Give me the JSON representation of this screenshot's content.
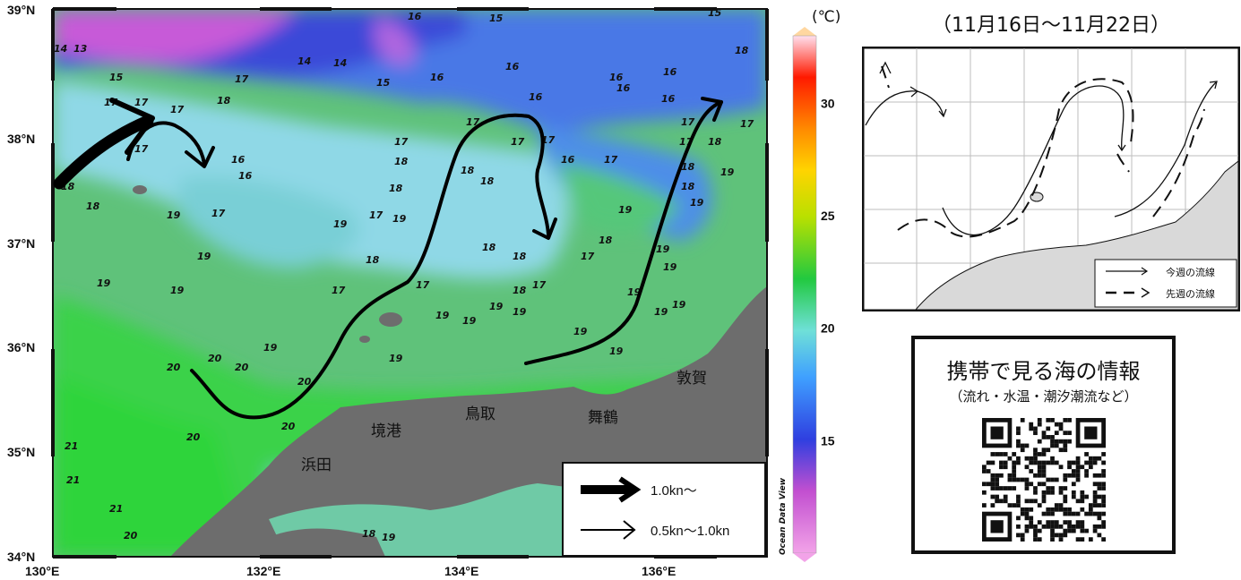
{
  "main_map": {
    "lat_labels": [
      "39°N",
      "38°N",
      "37°N",
      "36°N",
      "35°N",
      "34°N"
    ],
    "lon_labels": [
      "130°E",
      "132°E",
      "134°E",
      "136°E"
    ],
    "place_labels": [
      "浜田",
      "境港",
      "鳥取",
      "舞鶴",
      "敦賀"
    ],
    "contour_labels": [
      "14",
      "13",
      "16",
      "15",
      "15",
      "14",
      "14",
      "15",
      "16",
      "16",
      "16",
      "15",
      "18",
      "17",
      "17",
      "17",
      "17",
      "18",
      "16",
      "17",
      "16",
      "16",
      "16",
      "17",
      "18",
      "17",
      "17",
      "17",
      "17",
      "18",
      "18",
      "17",
      "16",
      "16",
      "17",
      "18",
      "16",
      "17",
      "18",
      "18",
      "19",
      "17",
      "18",
      "19",
      "19",
      "19",
      "18",
      "17",
      "18",
      "17",
      "18",
      "19",
      "19",
      "18",
      "18",
      "17",
      "17",
      "18",
      "19",
      "19",
      "19",
      "19",
      "17",
      "18",
      "19",
      "19",
      "19",
      "19",
      "19",
      "19",
      "19",
      "19",
      "19",
      "20",
      "20",
      "19",
      "20",
      "19",
      "20",
      "19",
      "20",
      "20",
      "21",
      "21",
      "21",
      "20",
      "18",
      "19"
    ],
    "watermark": "Ocean Data View"
  },
  "colorbar": {
    "unit": "(℃)",
    "ticks": [
      "30",
      "25",
      "20",
      "15"
    ],
    "range": [
      10,
      33
    ]
  },
  "legend": {
    "thick_label": "1.0kn～",
    "thin_label": "0.5kn～1.0kn"
  },
  "streamline_panel": {
    "period": "（11月16日～11月22日）",
    "legend_this_week": "今週の流線",
    "legend_last_week": "先週の流線"
  },
  "info_box": {
    "title": "携帯で見る海の情報",
    "subtitle": "（流れ・水温・潮汐潮流など）"
  }
}
